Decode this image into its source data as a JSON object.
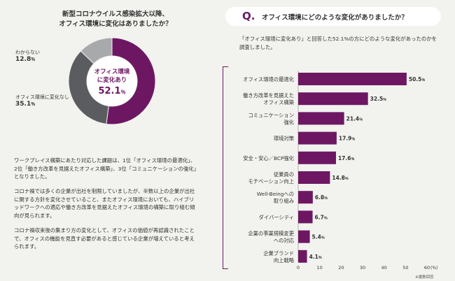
{
  "donut": {
    "title_line1": "新型コロナウイルス感染拡大以降、",
    "title_line2": "オフィス環境に変化はありましたか？",
    "center_line1": "オフィス環境",
    "center_line2": "に変化あり",
    "center_value": "52.1",
    "center_unit": "％",
    "segments": [
      {
        "label": "オフィス環境に変化あり",
        "value": 52.1,
        "color": "#6d1763"
      },
      {
        "label": "オフィス環境に変化なし",
        "value": 35.1,
        "color": "#5a5c5f",
        "shown_label": "オフィス環境に変化なし",
        "shown_value": "35.1",
        "unit": "％"
      },
      {
        "label": "わからない",
        "value": 12.8,
        "color": "#a7a9ab",
        "shown_label": "わからない",
        "shown_value": "12.8",
        "unit": "％"
      }
    ]
  },
  "body": {
    "p1": "ワークプレイス構築にあたり対応した課題は、1位「オフィス環境の最適化」、2位「働き方改革を見据えたオフィス構築」、3位「コミュニケーションの強化」となりました。",
    "p2": "コロナ禍では多くの企業が出社を制限していましたが、半数以上の企業が出社に関する方針を変化させていること、またオフィス環境においても、ハイブリッドワークへの適応や働き方改革を見据えたオフィス環境の構築に取り組む傾向が見られます。",
    "p3": "コロナ禍収束後の集まり方の変化として、オフィスの価値が再認識されたことで、オフィスの機能を見直す必要があると感じている企業が増えていると考えられます。"
  },
  "question": {
    "letter": "Q.",
    "text": "オフィス環境にどのような変化がありましたか？",
    "note": "「オフィス環境に変化あり」と回答した52.1%の方にどのような変化があったのかを調査しました。"
  },
  "chart_data": {
    "type": "bar",
    "orientation": "horizontal",
    "categories": [
      "オフィス環境の最適化",
      "働き方改革を見据えた\nオフィス構築",
      "コミュニケーション\n強化",
      "環境対策",
      "安全・安心／BCP強化",
      "従業員の\nモチベーション向上",
      "Well-Beingへの\n取り組み",
      "ダイバーシティ",
      "企業の事業規模変更\nへの対応",
      "企業ブランド\n向上戦略"
    ],
    "values": [
      50.5,
      32.5,
      21.4,
      17.9,
      17.6,
      14.8,
      6.8,
      6.7,
      5.4,
      4.1
    ],
    "value_labels": [
      "50.5",
      "32.5",
      "21.4",
      "17.9",
      "17.6",
      "14.8",
      "6.8",
      "6.7",
      "5.4",
      "4.1"
    ],
    "value_unit": "％",
    "xlim": [
      0,
      60
    ],
    "xticks": [
      "0",
      "10",
      "20",
      "30",
      "40",
      "50",
      "60"
    ],
    "xtick_unit": "(%)",
    "bar_color": "#6d1763",
    "grid": false
  },
  "footnote": "※複数回答"
}
